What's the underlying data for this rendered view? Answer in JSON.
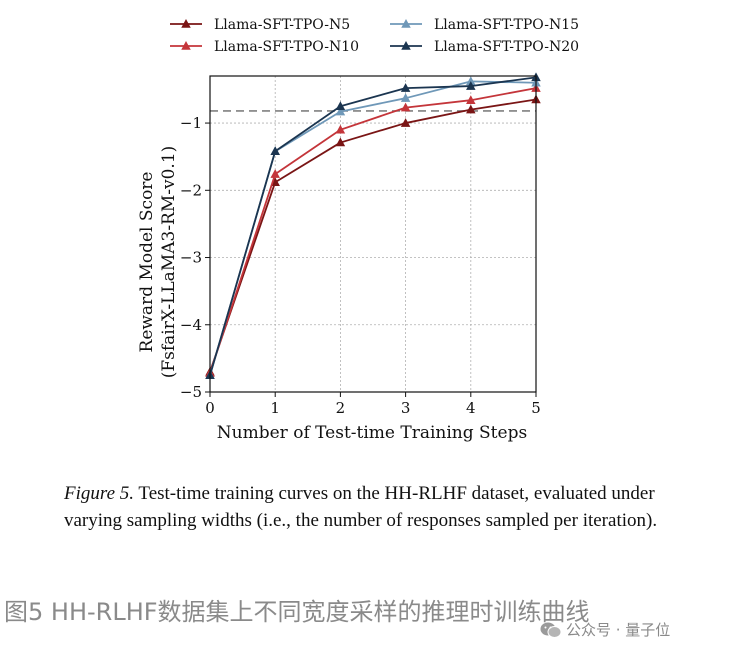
{
  "chart_data": {
    "type": "line",
    "xlabel": "Number of Test-time Training Steps",
    "ylabel_line1": "Reward Model Score",
    "ylabel_line2": "(FsfairX-LLaMA3-RM-v0.1)",
    "x": [
      0,
      1,
      2,
      3,
      4,
      5
    ],
    "xlim": [
      0,
      5
    ],
    "ylim": [
      -5,
      -0.3
    ],
    "xticks": [
      "0",
      "1",
      "2",
      "3",
      "4",
      "5"
    ],
    "yticks": [
      "−5",
      "−4",
      "−3",
      "−2",
      "−1"
    ],
    "ytick_values": [
      -5,
      -4,
      -3,
      -2,
      -1
    ],
    "grid": true,
    "legend_placement": "top, outside plot, two columns",
    "reference_line": {
      "y": -0.82,
      "style": "dashed",
      "color": "#808080"
    },
    "series": [
      {
        "name": "Llama-SFT-TPO-N5",
        "color": "#7a1515",
        "marker": "triangle-up",
        "values": [
          -4.7,
          -1.88,
          -1.29,
          -1.0,
          -0.8,
          -0.65
        ]
      },
      {
        "name": "Llama-SFT-TPO-N10",
        "color": "#c4353a",
        "marker": "triangle-up",
        "values": [
          -4.72,
          -1.76,
          -1.1,
          -0.77,
          -0.66,
          -0.48
        ]
      },
      {
        "name": "Llama-SFT-TPO-N15",
        "color": "#6f98b8",
        "marker": "triangle-up",
        "values": [
          -4.75,
          -1.42,
          -0.83,
          -0.63,
          -0.38,
          -0.4
        ]
      },
      {
        "name": "Llama-SFT-TPO-N20",
        "color": "#1b3550",
        "marker": "triangle-up",
        "values": [
          -4.75,
          -1.42,
          -0.75,
          -0.48,
          -0.45,
          -0.32
        ]
      }
    ]
  },
  "caption": {
    "label": "Figure 5.",
    "text": " Test-time training curves on the HH-RLHF dataset, evaluated under varying sampling widths (i.e., the number of responses sampled per iteration)."
  },
  "cn_title": "图5 HH-RLHF数据集上不同宽度采样的推理时训练曲线",
  "watermark": {
    "text": "公众号 · 量子位",
    "icon": "wechat-icon"
  }
}
